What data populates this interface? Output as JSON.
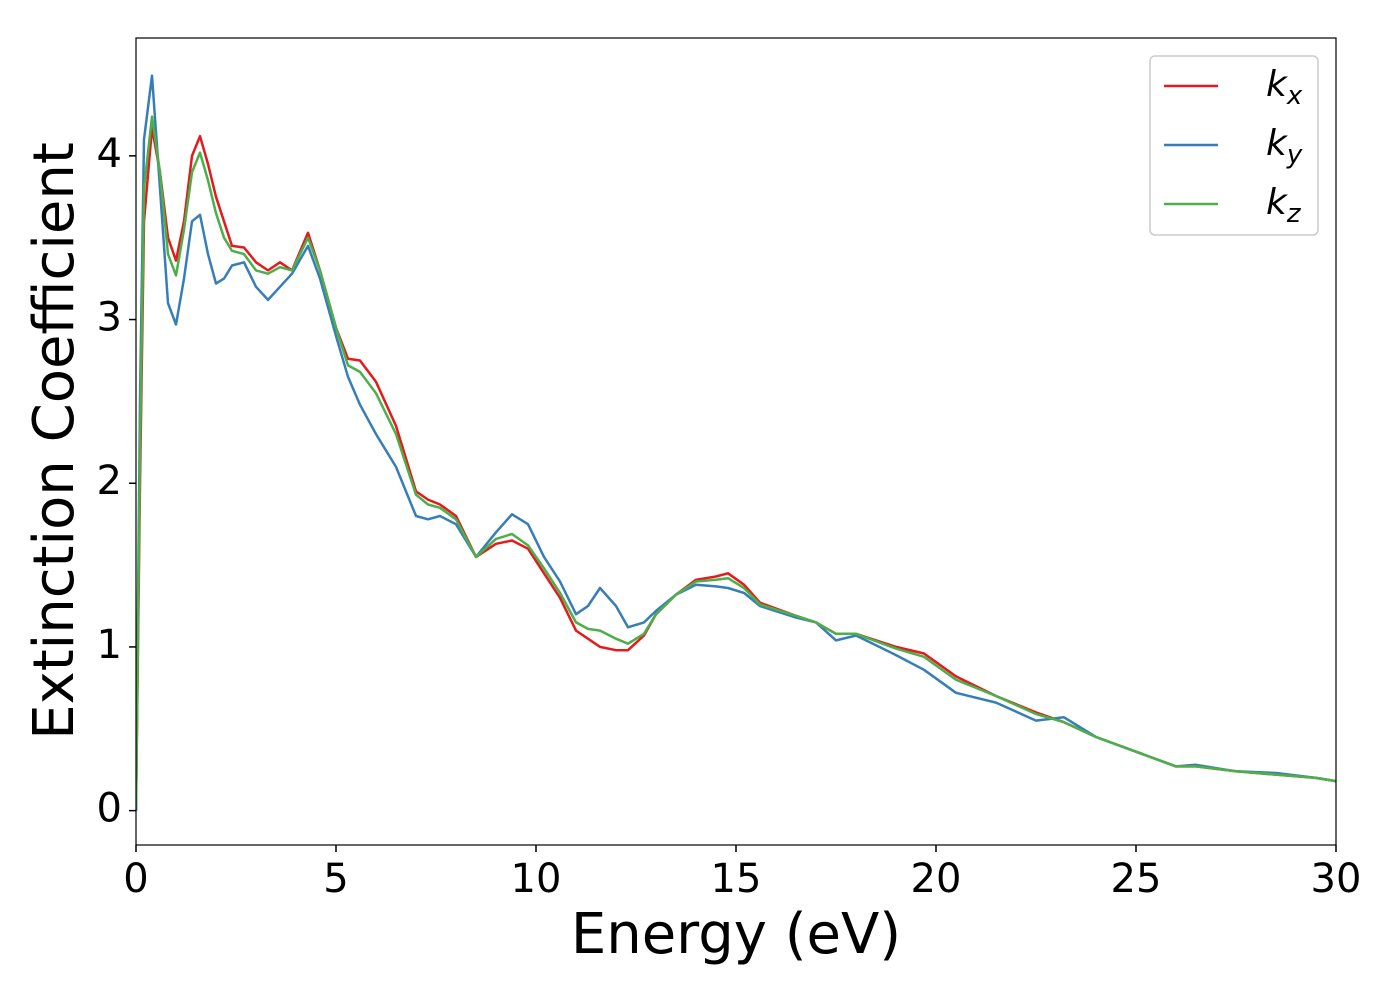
{
  "chart_data": {
    "type": "line",
    "x_label": "Energy (eV)",
    "y_label": "Extinction Coefficient",
    "x": [
      0,
      0.1,
      0.2,
      0.4,
      0.6,
      0.8,
      1.0,
      1.2,
      1.4,
      1.6,
      1.8,
      2.0,
      2.2,
      2.4,
      2.7,
      3.0,
      3.3,
      3.6,
      3.9,
      4.3,
      4.6,
      5.0,
      5.3,
      5.6,
      6.0,
      6.5,
      7.0,
      7.3,
      7.6,
      8.0,
      8.5,
      9.0,
      9.4,
      9.8,
      10.2,
      10.6,
      11.0,
      11.3,
      11.6,
      12.0,
      12.3,
      12.7,
      13.0,
      13.5,
      14.0,
      14.5,
      14.8,
      15.2,
      15.6,
      16.5,
      17.0,
      17.5,
      18.0,
      19.0,
      19.7,
      20.5,
      21.5,
      22.5,
      23.2,
      24.0,
      25,
      26,
      26.5,
      27.5,
      28.5,
      29.5,
      30
    ],
    "series": [
      {
        "name": "kx",
        "color": "#e41a1c",
        "values": [
          0,
          2.0,
          3.6,
          4.17,
          3.9,
          3.5,
          3.36,
          3.6,
          4.0,
          4.12,
          3.95,
          3.75,
          3.6,
          3.45,
          3.44,
          3.35,
          3.3,
          3.35,
          3.3,
          3.53,
          3.3,
          2.95,
          2.76,
          2.75,
          2.62,
          2.35,
          1.95,
          1.9,
          1.87,
          1.8,
          1.55,
          1.63,
          1.65,
          1.6,
          1.45,
          1.3,
          1.1,
          1.05,
          1.0,
          0.98,
          0.98,
          1.07,
          1.2,
          1.32,
          1.41,
          1.43,
          1.45,
          1.38,
          1.27,
          1.19,
          1.15,
          1.08,
          1.08,
          1.0,
          0.96,
          0.82,
          0.7,
          0.6,
          0.54,
          0.45,
          0.36,
          0.27,
          0.27,
          0.24,
          0.22,
          0.2,
          0.18
        ]
      },
      {
        "name": "ky",
        "color": "#377eb8",
        "values": [
          0,
          2.5,
          4.1,
          4.49,
          3.8,
          3.1,
          2.97,
          3.25,
          3.6,
          3.64,
          3.4,
          3.22,
          3.25,
          3.33,
          3.35,
          3.2,
          3.12,
          3.2,
          3.28,
          3.45,
          3.25,
          2.9,
          2.65,
          2.48,
          2.3,
          2.1,
          1.8,
          1.78,
          1.8,
          1.75,
          1.55,
          1.7,
          1.81,
          1.75,
          1.55,
          1.4,
          1.2,
          1.25,
          1.36,
          1.25,
          1.12,
          1.15,
          1.22,
          1.32,
          1.38,
          1.37,
          1.36,
          1.33,
          1.25,
          1.18,
          1.15,
          1.04,
          1.07,
          0.95,
          0.86,
          0.72,
          0.66,
          0.55,
          0.57,
          0.45,
          0.36,
          0.27,
          0.28,
          0.24,
          0.23,
          0.2,
          0.18
        ]
      },
      {
        "name": "kz",
        "color": "#4daf4a",
        "values": [
          0,
          2.2,
          3.8,
          4.24,
          3.9,
          3.4,
          3.27,
          3.55,
          3.9,
          4.02,
          3.85,
          3.65,
          3.5,
          3.42,
          3.4,
          3.3,
          3.28,
          3.32,
          3.3,
          3.5,
          3.3,
          2.95,
          2.72,
          2.68,
          2.55,
          2.3,
          1.93,
          1.87,
          1.85,
          1.78,
          1.55,
          1.66,
          1.69,
          1.62,
          1.48,
          1.33,
          1.15,
          1.11,
          1.1,
          1.05,
          1.02,
          1.08,
          1.2,
          1.32,
          1.4,
          1.41,
          1.42,
          1.36,
          1.26,
          1.19,
          1.15,
          1.08,
          1.08,
          0.99,
          0.94,
          0.8,
          0.7,
          0.59,
          0.54,
          0.45,
          0.36,
          0.27,
          0.27,
          0.24,
          0.22,
          0.2,
          0.18
        ]
      }
    ],
    "xlim": [
      0,
      30
    ],
    "xticks": [
      0,
      5,
      10,
      15,
      20,
      25,
      30
    ],
    "ylim": [
      -0.21,
      4.72
    ],
    "yticks": [
      0,
      1,
      2,
      3,
      4
    ],
    "legend": "upper right"
  }
}
